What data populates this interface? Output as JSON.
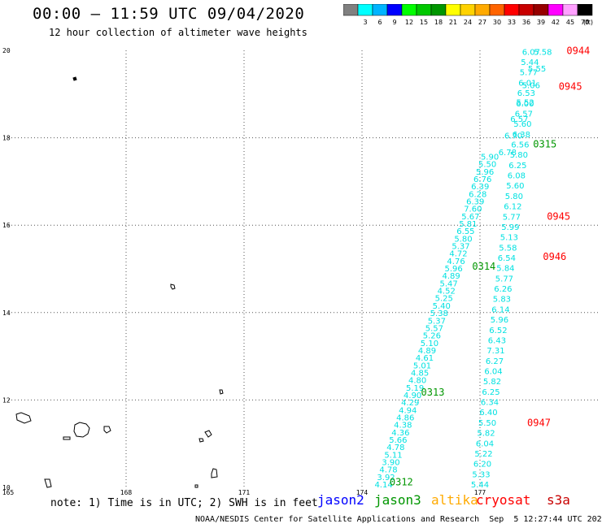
{
  "header": {
    "title": "00:00 – 11:59 UTC 09/04/2020",
    "subtitle": "12 hour collection of altimeter wave heights"
  },
  "legend": {
    "unit": "(ft)",
    "bins": [
      {
        "label": "",
        "color": "#808080"
      },
      {
        "label": "3",
        "color": "#00ffff"
      },
      {
        "label": "6",
        "color": "#00b4ff"
      },
      {
        "label": "9",
        "color": "#0000ff"
      },
      {
        "label": "12",
        "color": "#00ff00"
      },
      {
        "label": "15",
        "color": "#00c800"
      },
      {
        "label": "18",
        "color": "#009600"
      },
      {
        "label": "21",
        "color": "#ffff00"
      },
      {
        "label": "24",
        "color": "#ffd200"
      },
      {
        "label": "27",
        "color": "#ffaa00"
      },
      {
        "label": "30",
        "color": "#ff6400"
      },
      {
        "label": "33",
        "color": "#ff0000"
      },
      {
        "label": "36",
        "color": "#c80000"
      },
      {
        "label": "39",
        "color": "#960000"
      },
      {
        "label": "42",
        "color": "#ff00ff"
      },
      {
        "label": "45",
        "color": "#ffa0ff"
      },
      {
        "label": "70",
        "color": "#000000"
      }
    ]
  },
  "footer": {
    "note": "note: 1) Time is in UTC; 2) SWH is in feet",
    "credit": "NOAA/NESDIS Center for Satellite Applications and Research  Sep  5 12:27:44 UTC 2020",
    "satellites": [
      {
        "name": "jason2",
        "color": "#0000ff"
      },
      {
        "name": "jason3",
        "color": "#009600"
      },
      {
        "name": "altika",
        "color": "#ffaa00"
      },
      {
        "name": "cryosat",
        "color": "#ff0000"
      },
      {
        "name": "s3a",
        "color": "#c80000"
      }
    ]
  },
  "chart_data": {
    "type": "scatter",
    "xlim": [
      165,
      180
    ],
    "ylim": [
      10,
      20
    ],
    "x_ticks": [
      165,
      168,
      171,
      174,
      177
    ],
    "y_ticks": [
      10,
      12,
      14,
      16,
      18,
      20
    ],
    "grid": true,
    "value_color": "#00e1e1",
    "tracks": [
      {
        "name": "track-ascending-west",
        "lon_start": 174.55,
        "lat_start": 10.0,
        "lon_end": 177.25,
        "lat_end": 17.5,
        "values": [
          "4.14",
          "3.92",
          "4.78",
          "3.90",
          "5.11",
          "4.78",
          "5.66",
          "4.36",
          "4.38",
          "4.86",
          "4.94",
          "4.29",
          "4.90",
          "5.19",
          "4.80",
          "4.85",
          "5.01",
          "4.61",
          "4.89",
          "5.10",
          "5.26",
          "5.57",
          "5.37",
          "5.38",
          "5.40",
          "5.25",
          "4.52",
          "5.47",
          "4.89",
          "5.96",
          "4.76",
          "4.72",
          "5.37",
          "5.80",
          "6.55",
          "5.81",
          "5.67",
          "7.60",
          "6.39",
          "6.28",
          "6.39",
          "6.76",
          "5.96",
          "5.50",
          "5.90"
        ]
      },
      {
        "name": "track-ascending-east",
        "lon_start": 177.0,
        "lat_start": 10.0,
        "lon_end": 178.3,
        "lat_end": 19.9,
        "values": [
          "5.44",
          "5.33",
          "6.20",
          "5.22",
          "6.04",
          "5.82",
          "5.50",
          "6.40",
          "6.34",
          "6.25",
          "5.82",
          "6.04",
          "6.27",
          "7.31",
          "6.43",
          "6.52",
          "5.96",
          "6.14",
          "5.83",
          "6.26",
          "5.77",
          "5.84",
          "6.54",
          "5.58",
          "5.13",
          "5.99",
          "5.77",
          "6.12",
          "5.80",
          "5.60",
          "6.08",
          "6.25",
          "5.80",
          "6.56",
          "6.38",
          "5.60",
          "6.57",
          "6.00",
          "6.53",
          "6.01",
          "5.77",
          "5.44",
          "6.07"
        ]
      },
      {
        "name": "track-ascending-far",
        "lon_start": 177.7,
        "lat_start": 17.6,
        "lon_end": 178.6,
        "lat_end": 19.9,
        "values": [
          "6.78",
          "6.70",
          "6.57",
          "5.52",
          "5.06",
          "5.55",
          "5.58"
        ]
      }
    ],
    "time_labels": [
      {
        "text": "0312",
        "lon": 175.0,
        "lat": 10.05,
        "color": "#009600"
      },
      {
        "text": "0313",
        "lon": 175.8,
        "lat": 12.1,
        "color": "#009600"
      },
      {
        "text": "0314",
        "lon": 177.1,
        "lat": 14.98,
        "color": "#009600"
      },
      {
        "text": "0315",
        "lon": 178.65,
        "lat": 17.78,
        "color": "#009600"
      },
      {
        "text": "0947",
        "lon": 178.5,
        "lat": 11.4,
        "color": "#ff0000"
      },
      {
        "text": "0946",
        "lon": 178.9,
        "lat": 15.2,
        "color": "#ff0000"
      },
      {
        "text": "0945",
        "lon": 179.0,
        "lat": 16.12,
        "color": "#ff0000"
      },
      {
        "text": "0945",
        "lon": 179.3,
        "lat": 19.1,
        "color": "#ff0000"
      },
      {
        "text": "0944",
        "lon": 179.5,
        "lat": 19.92,
        "color": "#ff0000"
      }
    ]
  }
}
